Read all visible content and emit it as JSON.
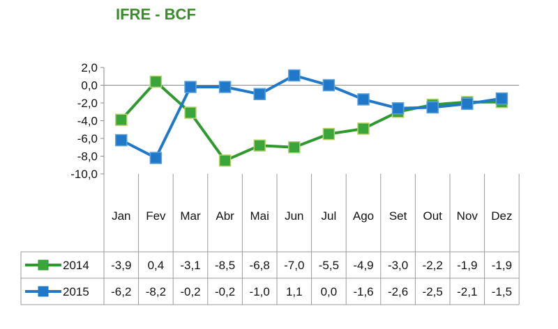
{
  "chart_data": {
    "type": "line",
    "title": "IFRE - BCF",
    "categories": [
      "Jan",
      "Fev",
      "Mar",
      "Abr",
      "Mai",
      "Jun",
      "Jul",
      "Ago",
      "Set",
      "Out",
      "Nov",
      "Dez"
    ],
    "ylim": [
      -10,
      2
    ],
    "yticks": [
      "2,0",
      "0,0",
      "-2,0",
      "-4,0",
      "-6,0",
      "-8,0",
      "-10,0"
    ],
    "ytick_values": [
      2,
      0,
      -2,
      -4,
      -6,
      -8,
      -10
    ],
    "series": [
      {
        "name": "2014",
        "color": "#2e9a2e",
        "marker_fill": "#3aa53a",
        "values": [
          -3.9,
          0.4,
          -3.1,
          -8.5,
          -6.8,
          -7.0,
          -5.5,
          -4.9,
          -3.0,
          -2.2,
          -1.9,
          -1.9
        ],
        "labels": [
          "-3,9",
          "0,4",
          "-3,1",
          "-8,5",
          "-6,8",
          "-7,0",
          "-5,5",
          "-4,9",
          "-3,0",
          "-2,2",
          "-1,9",
          "-1,9"
        ]
      },
      {
        "name": "2015",
        "color": "#1f78c8",
        "marker_fill": "#1f78c8",
        "values": [
          -6.2,
          -8.2,
          -0.2,
          -0.2,
          -1.0,
          1.1,
          0.0,
          -1.6,
          -2.6,
          -2.5,
          -2.1,
          -1.5
        ],
        "labels": [
          "-6,2",
          "-8,2",
          "-0,2",
          "-0,2",
          "-1,0",
          "1,1",
          "0,0",
          "-1,6",
          "-2,6",
          "-2,5",
          "-2,1",
          "-1,5"
        ]
      }
    ],
    "legend": "data-table"
  }
}
